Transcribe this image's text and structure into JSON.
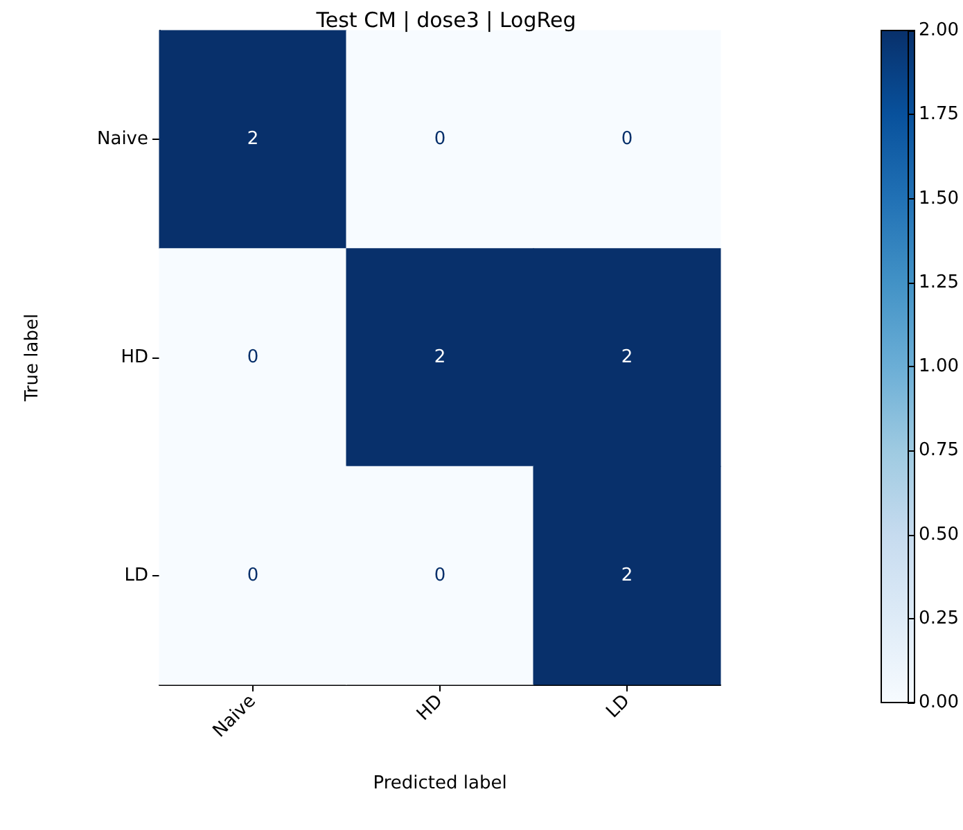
{
  "chart_data": {
    "type": "heatmap",
    "title": "Test CM | dose3 | LogReg",
    "xlabel": "Predicted label",
    "ylabel": "True label",
    "categories": [
      "Naive",
      "HD",
      "LD"
    ],
    "y_categories": [
      "Naive",
      "HD",
      "LD"
    ],
    "cells": [
      [
        2,
        0,
        0
      ],
      [
        0,
        2,
        2
      ],
      [
        0,
        0,
        2
      ]
    ],
    "clim": [
      0,
      2
    ],
    "cticks": [
      {
        "value": 0,
        "label": "0.00"
      },
      {
        "value": 0.25,
        "label": "0.25"
      },
      {
        "value": 0.5,
        "label": "0.50"
      },
      {
        "value": 0.75,
        "label": "0.75"
      },
      {
        "value": 1,
        "label": "1.00"
      },
      {
        "value": 1.25,
        "label": "1.25"
      },
      {
        "value": 1.5,
        "label": "1.50"
      },
      {
        "value": 1.75,
        "label": "1.75"
      },
      {
        "value": 2,
        "label": "2.00"
      }
    ],
    "data_labels": true
  }
}
